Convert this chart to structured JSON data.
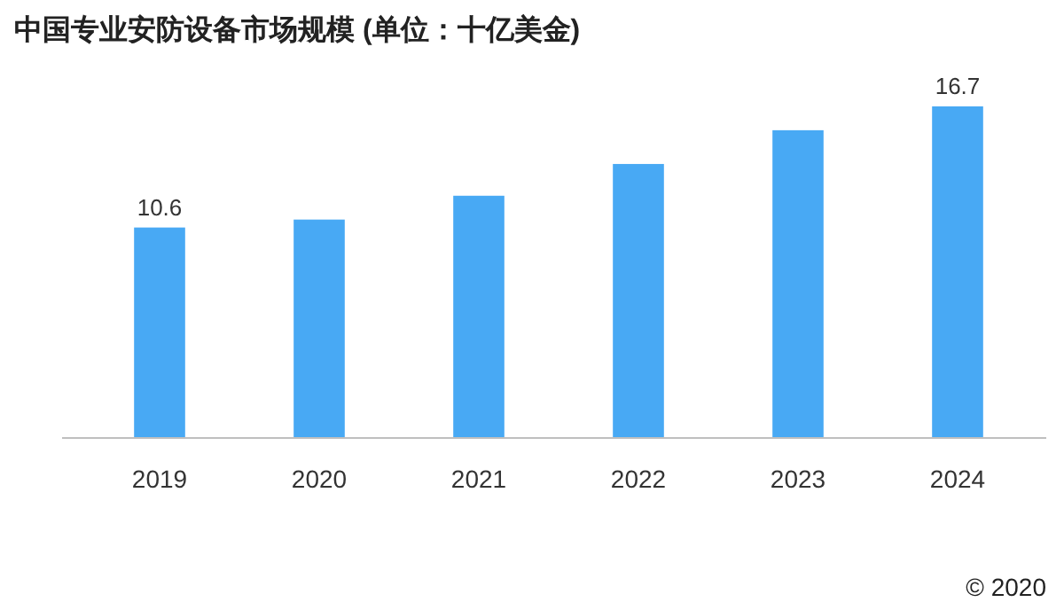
{
  "chart_data": {
    "type": "bar",
    "title": "中国专业安防设备市场规模 (单位：十亿美金)",
    "categories": [
      "2019",
      "2020",
      "2021",
      "2022",
      "2023",
      "2024"
    ],
    "values": [
      10.6,
      11.0,
      12.2,
      13.8,
      15.5,
      16.7
    ],
    "value_labels": [
      "10.6",
      null,
      null,
      null,
      null,
      "16.7"
    ],
    "color": "#48a9f4",
    "annotations": [
      "© 2020"
    ]
  }
}
